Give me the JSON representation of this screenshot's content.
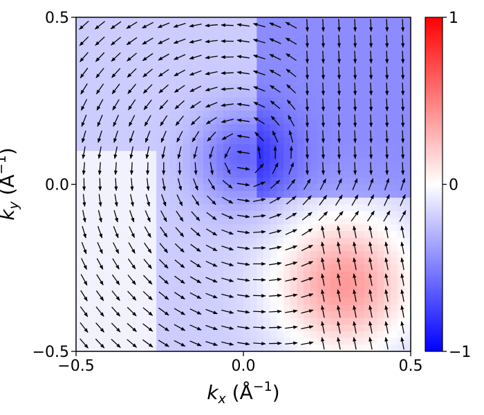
{
  "chart_data": {
    "type": "heatmap",
    "overlay": "quiver",
    "xlabel": {
      "symbol": "k",
      "sub": "x",
      "unit_prefix": " (Å",
      "unit_exp": "−1",
      "unit_suffix": ")"
    },
    "ylabel": {
      "symbol": "k",
      "sub": "y",
      "unit_prefix": " (Å",
      "unit_exp": "−1",
      "unit_suffix": ")"
    },
    "xlim": [
      -0.5,
      0.5
    ],
    "ylim": [
      -0.5,
      0.5
    ],
    "x_ticks": [
      {
        "value": -0.5,
        "label": "−0.5"
      },
      {
        "value": 0.0,
        "label": "0.0"
      },
      {
        "value": 0.5,
        "label": "0.5"
      }
    ],
    "y_ticks": [
      {
        "value": -0.5,
        "label": "−0.5"
      },
      {
        "value": 0.0,
        "label": "0.0"
      },
      {
        "value": 0.5,
        "label": "0.5"
      }
    ],
    "colorbar": {
      "range": [
        -1,
        1
      ],
      "colormap": "bwr",
      "colors": {
        "low": "#0000ff",
        "mid": "#ffffff",
        "high": "#ff0000"
      },
      "ticks": [
        {
          "value": 1,
          "label": "1"
        },
        {
          "value": 0,
          "label": "0"
        },
        {
          "value": -1,
          "label": "−1"
        }
      ]
    },
    "grid": false,
    "field_description": "Spin texture: vortex centered near (0.0, 0.08) with out-of-plane component about -0.6 (blue); positive lobe centered near (0.3, -0.3) at about +0.35 (red)",
    "vortex_center": [
      0.0,
      0.08
    ],
    "positive_lobe_center": [
      0.3,
      -0.3
    ],
    "arrow_grid": {
      "nx": 21,
      "ny": 21
    }
  }
}
